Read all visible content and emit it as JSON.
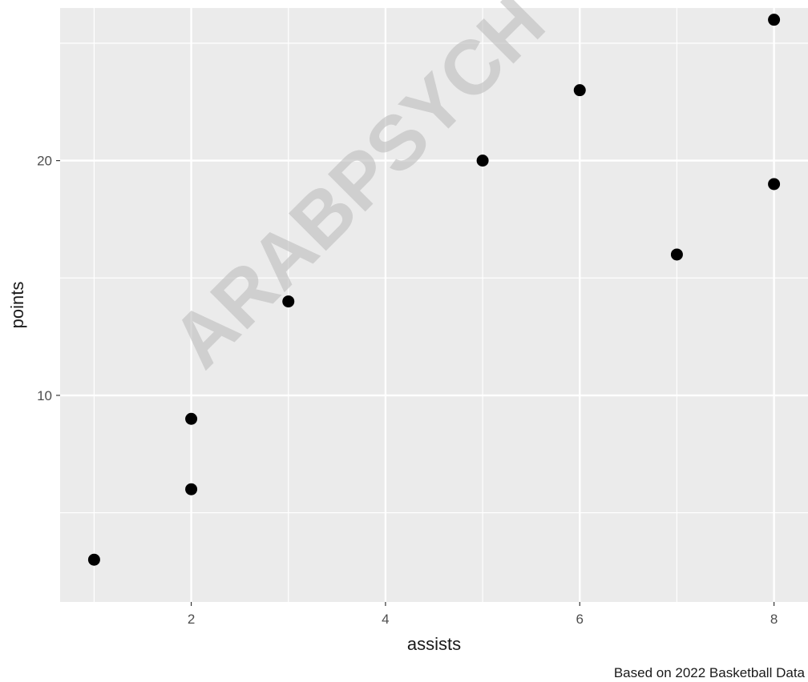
{
  "chart_data": {
    "type": "scatter",
    "xlabel": "assists",
    "ylabel": "points",
    "caption": "Based on 2022 Basketball Data",
    "x_ticks": [
      2,
      4,
      6,
      8
    ],
    "y_ticks": [
      10,
      20
    ],
    "xlim": [
      0.65,
      8.35
    ],
    "ylim": [
      1.2,
      26.5
    ],
    "grid": true,
    "background": "#ebebeb",
    "grid_color": "#ffffff",
    "point_color": "#000000",
    "points": [
      {
        "x": 1,
        "y": 3
      },
      {
        "x": 2,
        "y": 6
      },
      {
        "x": 2,
        "y": 9
      },
      {
        "x": 3,
        "y": 14
      },
      {
        "x": 5,
        "y": 20
      },
      {
        "x": 6,
        "y": 23
      },
      {
        "x": 7,
        "y": 16
      },
      {
        "x": 8,
        "y": 19
      },
      {
        "x": 8,
        "y": 26
      }
    ]
  },
  "watermark": "ARABPSYCH"
}
